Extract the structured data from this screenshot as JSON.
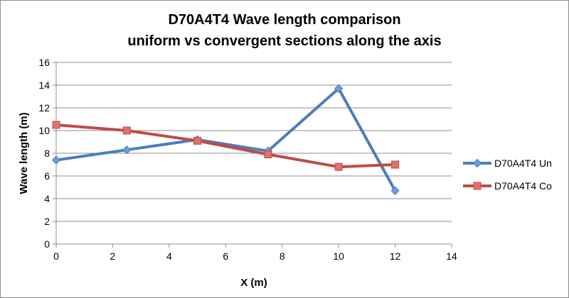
{
  "chart_data": {
    "type": "line",
    "title_lines": [
      "D70A4T4 Wave length comparison",
      "uniform vs convergent sections along the axis"
    ],
    "xlabel": "X (m)",
    "ylabel": "Wave length (m)",
    "xlim": [
      0,
      14
    ],
    "ylim": [
      0,
      16
    ],
    "xticks": [
      0,
      2,
      4,
      6,
      8,
      10,
      12,
      14
    ],
    "yticks": [
      0,
      2,
      4,
      6,
      8,
      10,
      12,
      14,
      16
    ],
    "grid": "horizontal",
    "legend_position": "right",
    "series": [
      {
        "name": "D70A4T4 Un",
        "color": "#4a7ebb",
        "marker": "diamond",
        "x": [
          0,
          2.5,
          5,
          7.5,
          10,
          12
        ],
        "y": [
          7.4,
          8.3,
          9.2,
          8.2,
          13.7,
          4.7
        ]
      },
      {
        "name": "D70A4T4 Co",
        "color": "#be4b48",
        "marker": "square",
        "x": [
          0,
          2.5,
          5,
          7.5,
          10,
          12
        ],
        "y": [
          10.5,
          10.0,
          9.1,
          7.9,
          6.8,
          7.0
        ]
      }
    ]
  }
}
